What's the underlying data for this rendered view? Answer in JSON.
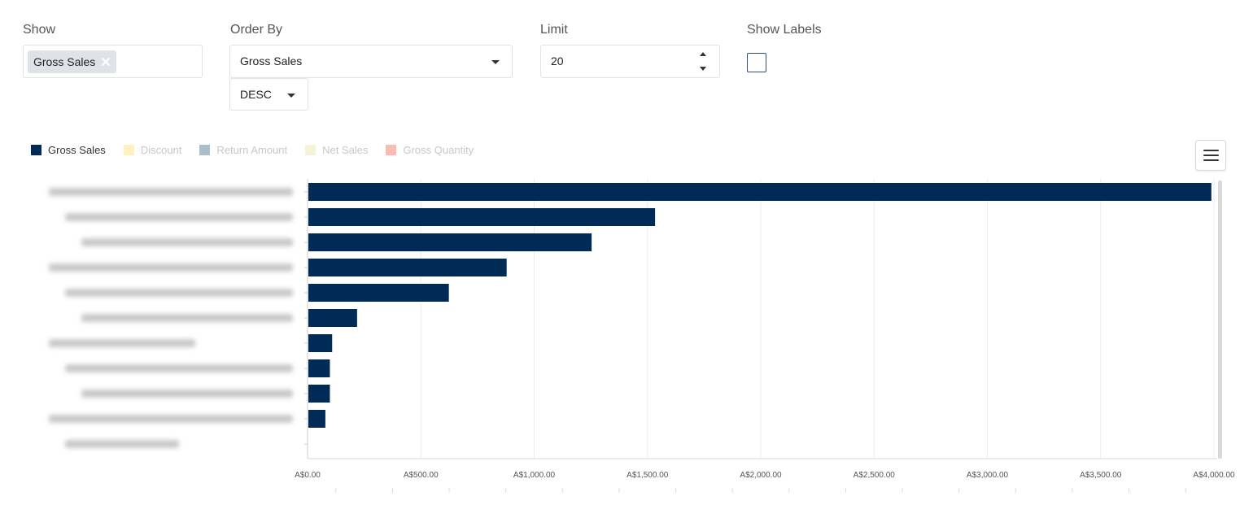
{
  "controls": {
    "show_label": "Show",
    "show_chip": "Gross Sales",
    "order_by_label": "Order By",
    "order_by_value": "Gross Sales",
    "order_dir_value": "DESC",
    "limit_label": "Limit",
    "limit_value": "20",
    "show_labels_label": "Show Labels",
    "show_labels_checked": false
  },
  "legend": [
    {
      "name": "Gross Sales",
      "color": "#002b57",
      "active": true
    },
    {
      "name": "Discount",
      "color": "#fff1c2",
      "active": false
    },
    {
      "name": "Return Amount",
      "color": "#a9bfcc",
      "active": false
    },
    {
      "name": "Net Sales",
      "color": "#f5f4d9",
      "active": false
    },
    {
      "name": "Gross Quantity",
      "color": "#f7bdb3",
      "active": false
    }
  ],
  "chart_data": {
    "type": "bar",
    "orientation": "horizontal",
    "categories": [
      "",
      "",
      "",
      "",
      "",
      "",
      "",
      "",
      "",
      "",
      ""
    ],
    "series": [
      {
        "name": "Gross Sales",
        "color": "#002b57",
        "values": [
          3985,
          1530,
          1250,
          875,
          620,
          215,
          105,
          95,
          95,
          75,
          0
        ]
      }
    ],
    "xlim": [
      0,
      4000
    ],
    "xticks": [
      "A$0.00",
      "A$500.00",
      "A$1,000.00",
      "A$1,500.00",
      "A$2,000.00",
      "A$2,500.00",
      "A$3,000.00",
      "A$3,500.00",
      "A$4,000.00"
    ],
    "grid": true
  }
}
